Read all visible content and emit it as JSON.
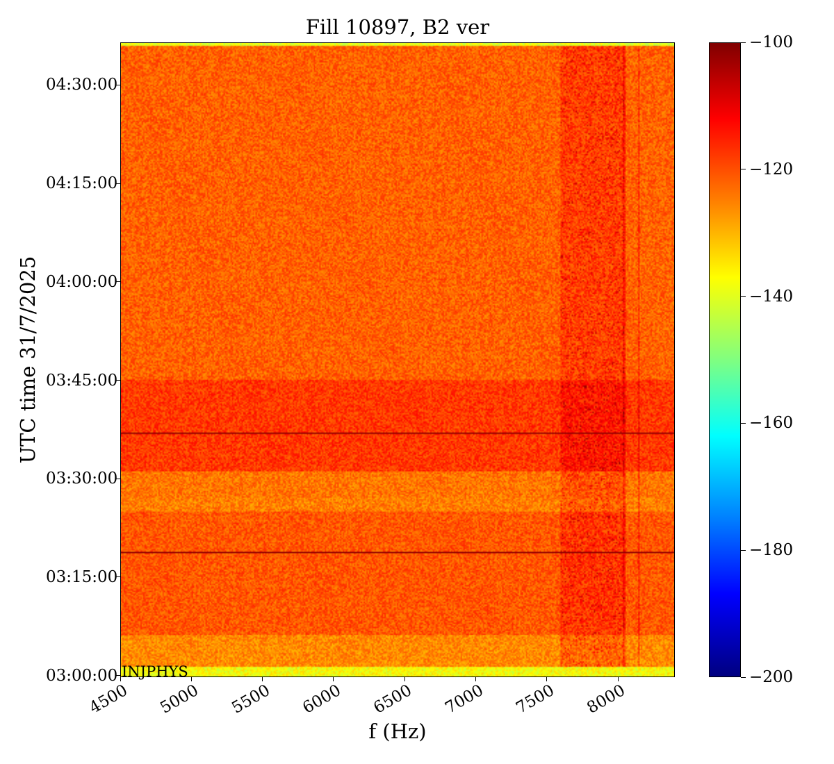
{
  "chart_data": {
    "type": "heatmap",
    "title": "Fill 10897, B2 ver",
    "xlabel": "f (Hz)",
    "ylabel": "UTC time 31/7/2025",
    "annotation": "INJPHYS",
    "xlim": [
      4500,
      8400
    ],
    "ylim": [
      "02:59:45",
      "04:36:30"
    ],
    "x_ticks": [
      4500,
      5000,
      5500,
      6000,
      6500,
      7000,
      7500,
      8000
    ],
    "x_tick_labels": [
      "4500",
      "5000",
      "5500",
      "6000",
      "6500",
      "7000",
      "7500",
      "8000"
    ],
    "y_ticks": [
      "03:00:00",
      "03:15:00",
      "03:30:00",
      "03:45:00",
      "04:00:00",
      "04:15:00",
      "04:30:00"
    ],
    "y_tick_labels": [
      "03:00:00",
      "03:15:00",
      "03:30:00",
      "03:45:00",
      "04:00:00",
      "04:15:00",
      "04:30:00"
    ],
    "colorbar": {
      "colormap": "jet",
      "range": [
        -200,
        -100
      ],
      "ticks": [
        -100,
        -120,
        -140,
        -160,
        -180,
        -200
      ],
      "tick_labels": [
        "−100",
        "−120",
        "−140",
        "−160",
        "−180",
        "−200"
      ]
    },
    "time_bands": [
      {
        "from": "02:59:45",
        "to": "03:01:15",
        "level_db": -138
      },
      {
        "from": "03:01:15",
        "to": "03:06:00",
        "level_db": -126
      },
      {
        "from": "03:06:00",
        "to": "03:25:00",
        "level_db": -121
      },
      {
        "from": "03:25:00",
        "to": "03:27:00",
        "level_db": -125
      },
      {
        "from": "03:27:00",
        "to": "03:31:00",
        "level_db": -124
      },
      {
        "from": "03:31:00",
        "to": "03:45:00",
        "level_db": -118
      },
      {
        "from": "03:45:00",
        "to": "04:36:00",
        "level_db": -122
      },
      {
        "from": "04:36:00",
        "to": "04:36:30",
        "level_db": -140
      }
    ],
    "horizontal_lines_time": [
      "03:18:40",
      "03:37:00"
    ],
    "vertical_lines_hz": [
      8050,
      8150
    ],
    "high_power_band_hz": [
      7600,
      8050
    ]
  },
  "colors": {
    "low": "#000080",
    "high": "#800000"
  }
}
